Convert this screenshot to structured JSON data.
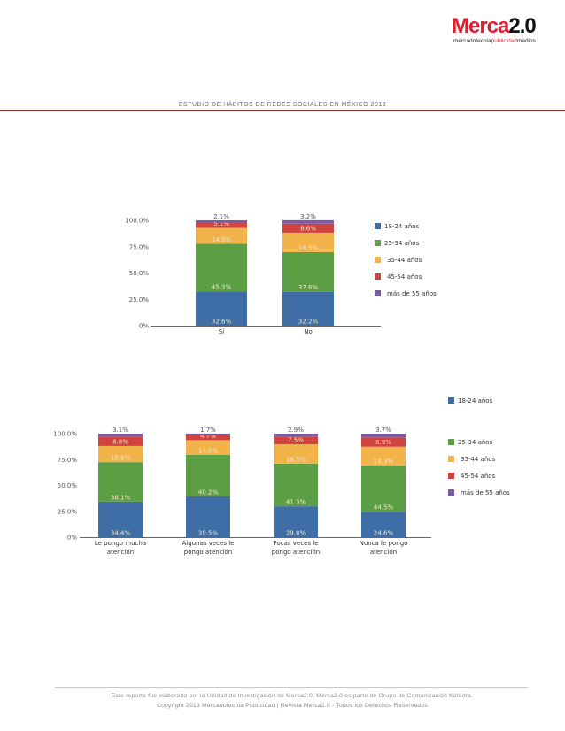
{
  "header": {
    "logo_main_a": "Merca",
    "logo_main_b": "2.0",
    "logo_sub_a": "mercadotecnia",
    "logo_sub_b": "publicidad",
    "logo_sub_c": "medios",
    "report_title": "ESTUDIO DE HÁBITOS DE REDES SOCIALES EN MÉXICO 2013"
  },
  "footer": {
    "line1": "Este reporte fue elaborado por la Unidad de Investigación de Merca2.0. Merca2.0 es parte de Grupo de Comunicación Kátedra.",
    "line2": "Copyright 2013 Mercadotecnia Publicidad | Revista Merca2.0 - Todos los Derechos Reservados"
  },
  "colors": {
    "18-24 años": "#3e6ea5",
    "25-34 años": "#5c9e44",
    "35-44 años": "#f2b44a",
    "45-54 años": "#d0433f",
    "más de 55 años": "#7b5aa6",
    "label_on_bar": "#f5e6c8",
    "label_above": "#555555"
  },
  "chart_data": [
    {
      "type": "bar",
      "stacked": true,
      "categories": [
        "Sí",
        "No"
      ],
      "yticks": [
        "0%",
        "25.0%",
        "50.0%",
        "75.0%",
        "100.0%"
      ],
      "ylim": [
        0,
        100
      ],
      "series": [
        {
          "name": "18-24 años",
          "values": [
            32.6,
            32.2
          ],
          "labels": [
            "32.6%",
            "32.2%"
          ]
        },
        {
          "name": "25-34 años",
          "values": [
            45.3,
            37.6
          ],
          "labels": [
            "45.3%",
            "37.6%"
          ]
        },
        {
          "name": "35-44 años",
          "values": [
            14.9,
            18.5
          ],
          "labels": [
            "14.9%",
            "18.5%"
          ]
        },
        {
          "name": "45-54 años",
          "values": [
            5.1,
            8.6
          ],
          "labels": [
            "5.1%",
            "8.6%"
          ]
        },
        {
          "name": "más de 55 años",
          "values": [
            2.1,
            3.2
          ],
          "labels": [
            "2.1%",
            "3.2%"
          ]
        }
      ],
      "legend": [
        "18-24 años",
        "25-34 años",
        "35-44 años",
        "45-54 años",
        "más de 55 años"
      ],
      "legend_position": "right"
    },
    {
      "type": "bar",
      "stacked": true,
      "categories": [
        [
          "Le pongo mucha",
          "atención"
        ],
        [
          "Algunas veces le",
          "pongo atención"
        ],
        [
          "Pocas veces le",
          "pongo atención"
        ],
        [
          "Nunca le pongo",
          "atención"
        ]
      ],
      "yticks": [
        "0%",
        "25.0%",
        "50.0%",
        "75.0%",
        "100.0%"
      ],
      "ylim": [
        0,
        100
      ],
      "series": [
        {
          "name": "18-24 años",
          "values": [
            34.4,
            39.5,
            29.8,
            24.6
          ],
          "labels": [
            "34.4%",
            "39.5%",
            "29.8%",
            "24.6%"
          ]
        },
        {
          "name": "25-34 años",
          "values": [
            38.1,
            40.2,
            41.3,
            44.5
          ],
          "labels": [
            "38.1%",
            "40.2%",
            "41.3%",
            "44.5%"
          ]
        },
        {
          "name": "35-44 años",
          "values": [
            15.6,
            14.0,
            18.5,
            18.3
          ],
          "labels": [
            "15.6%",
            "14.0%",
            "18.5%",
            "18.3%"
          ]
        },
        {
          "name": "45-54 años",
          "values": [
            8.8,
            4.7,
            7.5,
            8.9
          ],
          "labels": [
            "8.8%",
            "4.7%",
            "7.5%",
            "8.9%"
          ]
        },
        {
          "name": "más de 55 años",
          "values": [
            3.1,
            1.7,
            2.9,
            3.7
          ],
          "labels": [
            "3.1%",
            "1.7%",
            "2.9%",
            "3.7%"
          ]
        }
      ],
      "legend": [
        "18-24 años",
        "25-34 años",
        "35-44 años",
        "45-54 años",
        "más de 55 años"
      ],
      "legend_position": "right"
    }
  ]
}
